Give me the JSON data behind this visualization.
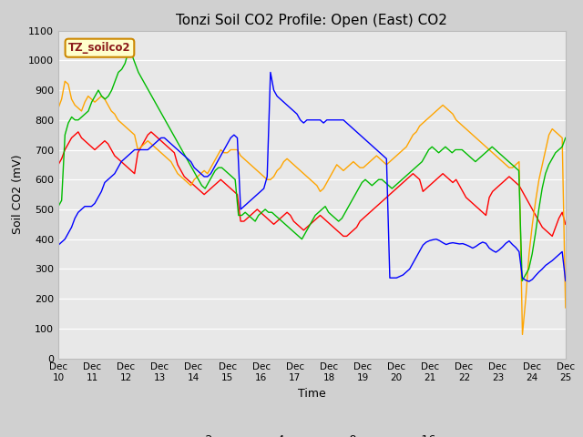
{
  "title": "Tonzi Soil CO2 Profile: Open (East) CO2",
  "ylabel": "Soil CO2 (mV)",
  "xlabel": "Time",
  "ylim": [
    0,
    1100
  ],
  "series_colors": {
    "-2cm": "#ff0000",
    "-4cm": "#ffa500",
    "-8cm": "#00bb00",
    "-16cm": "#0000ff"
  },
  "legend_label": "TZ_soilco2",
  "x_tick_labels": [
    "Dec 10",
    "Dec 11",
    "Dec 12",
    "Dec 13",
    "Dec 14",
    "Dec 15",
    "Dec 16",
    "Dec 17",
    "Dec 18",
    "Dec 19",
    "Dec 20",
    "Dec 21",
    "Dec 22",
    "Dec 23",
    "Dec 24",
    "Dec 25"
  ],
  "yticks": [
    0,
    100,
    200,
    300,
    400,
    500,
    600,
    700,
    800,
    900,
    1000,
    1100
  ],
  "data_2cm": [
    650,
    670,
    700,
    720,
    740,
    750,
    760,
    740,
    730,
    720,
    710,
    700,
    710,
    720,
    730,
    720,
    700,
    680,
    670,
    660,
    650,
    640,
    630,
    620,
    690,
    710,
    730,
    750,
    760,
    750,
    740,
    730,
    720,
    710,
    700,
    690,
    650,
    630,
    610,
    600,
    590,
    580,
    570,
    560,
    550,
    560,
    570,
    580,
    590,
    600,
    590,
    580,
    570,
    560,
    550,
    460,
    460,
    470,
    480,
    490,
    500,
    490,
    480,
    470,
    460,
    450,
    460,
    470,
    480,
    490,
    480,
    460,
    450,
    440,
    430,
    440,
    450,
    460,
    470,
    480,
    470,
    460,
    450,
    440,
    430,
    420,
    410,
    410,
    420,
    430,
    440,
    460,
    470,
    480,
    490,
    500,
    510,
    520,
    530,
    540,
    550,
    560,
    570,
    580,
    590,
    600,
    610,
    620,
    610,
    600,
    560,
    570,
    580,
    590,
    600,
    610,
    620,
    610,
    600,
    590,
    600,
    580,
    560,
    540,
    530,
    520,
    510,
    500,
    490,
    480,
    540,
    560,
    570,
    580,
    590,
    600,
    610,
    600,
    590,
    580,
    560,
    540,
    520,
    500,
    480,
    460,
    440,
    430,
    420,
    410,
    440,
    470,
    490,
    450
  ],
  "data_4cm": [
    840,
    870,
    930,
    920,
    870,
    850,
    840,
    830,
    860,
    880,
    870,
    860,
    870,
    880,
    870,
    850,
    830,
    820,
    800,
    790,
    780,
    770,
    760,
    750,
    700,
    710,
    720,
    730,
    720,
    710,
    700,
    690,
    680,
    670,
    660,
    640,
    620,
    610,
    600,
    590,
    580,
    600,
    610,
    620,
    630,
    620,
    640,
    660,
    680,
    700,
    690,
    690,
    700,
    700,
    700,
    680,
    670,
    660,
    650,
    640,
    630,
    620,
    610,
    600,
    600,
    610,
    630,
    640,
    660,
    670,
    660,
    650,
    640,
    630,
    620,
    610,
    600,
    590,
    580,
    560,
    570,
    590,
    610,
    630,
    650,
    640,
    630,
    640,
    650,
    660,
    650,
    640,
    640,
    650,
    660,
    670,
    680,
    670,
    660,
    650,
    660,
    670,
    680,
    690,
    700,
    710,
    730,
    750,
    760,
    780,
    790,
    800,
    810,
    820,
    830,
    840,
    850,
    840,
    830,
    820,
    800,
    790,
    780,
    770,
    760,
    750,
    740,
    730,
    720,
    710,
    700,
    690,
    680,
    670,
    660,
    650,
    640,
    640,
    650,
    660,
    80,
    200,
    350,
    450,
    530,
    600,
    650,
    700,
    750,
    770,
    760,
    750,
    740,
    170
  ],
  "data_8cm": [
    510,
    530,
    750,
    790,
    810,
    800,
    800,
    810,
    820,
    830,
    860,
    880,
    900,
    880,
    870,
    880,
    900,
    930,
    960,
    970,
    990,
    1030,
    1020,
    990,
    960,
    940,
    920,
    900,
    880,
    860,
    840,
    820,
    800,
    780,
    760,
    740,
    720,
    700,
    680,
    660,
    640,
    620,
    600,
    580,
    570,
    590,
    610,
    630,
    640,
    640,
    630,
    620,
    610,
    600,
    480,
    480,
    490,
    480,
    470,
    460,
    480,
    490,
    500,
    490,
    490,
    480,
    470,
    460,
    450,
    440,
    430,
    420,
    410,
    400,
    420,
    440,
    460,
    480,
    490,
    500,
    510,
    490,
    480,
    470,
    460,
    470,
    490,
    510,
    530,
    550,
    570,
    590,
    600,
    590,
    580,
    590,
    600,
    600,
    590,
    580,
    570,
    580,
    590,
    600,
    610,
    620,
    630,
    640,
    650,
    660,
    680,
    700,
    710,
    700,
    690,
    700,
    710,
    700,
    690,
    700,
    700,
    700,
    690,
    680,
    670,
    660,
    670,
    680,
    690,
    700,
    710,
    700,
    690,
    680,
    670,
    660,
    650,
    640,
    630,
    260,
    280,
    300,
    350,
    420,
    500,
    570,
    620,
    650,
    670,
    690,
    700,
    710,
    740
  ],
  "data_16cm": [
    380,
    390,
    400,
    420,
    440,
    470,
    490,
    500,
    510,
    510,
    510,
    520,
    540,
    560,
    590,
    600,
    610,
    620,
    640,
    660,
    670,
    680,
    690,
    700,
    700,
    700,
    700,
    700,
    710,
    720,
    730,
    740,
    740,
    730,
    720,
    710,
    700,
    690,
    680,
    670,
    660,
    640,
    630,
    620,
    610,
    610,
    620,
    640,
    660,
    680,
    700,
    720,
    740,
    750,
    740,
    500,
    510,
    520,
    530,
    540,
    550,
    560,
    570,
    610,
    960,
    900,
    880,
    870,
    860,
    850,
    840,
    830,
    820,
    800,
    790,
    800,
    800,
    800,
    800,
    800,
    790,
    800,
    800,
    800,
    800,
    800,
    800,
    790,
    780,
    770,
    760,
    750,
    740,
    730,
    720,
    710,
    700,
    690,
    680,
    670,
    270,
    270,
    270,
    275,
    280,
    290,
    300,
    320,
    340,
    360,
    380,
    390,
    395,
    398,
    400,
    395,
    388,
    382,
    386,
    388,
    386,
    384,
    385,
    381,
    376,
    370,
    376,
    384,
    390,
    386,
    370,
    362,
    356,
    364,
    374,
    386,
    394,
    382,
    372,
    358,
    270,
    262,
    258,
    265,
    278,
    290,
    300,
    312,
    320,
    328,
    338,
    348,
    358,
    260
  ]
}
